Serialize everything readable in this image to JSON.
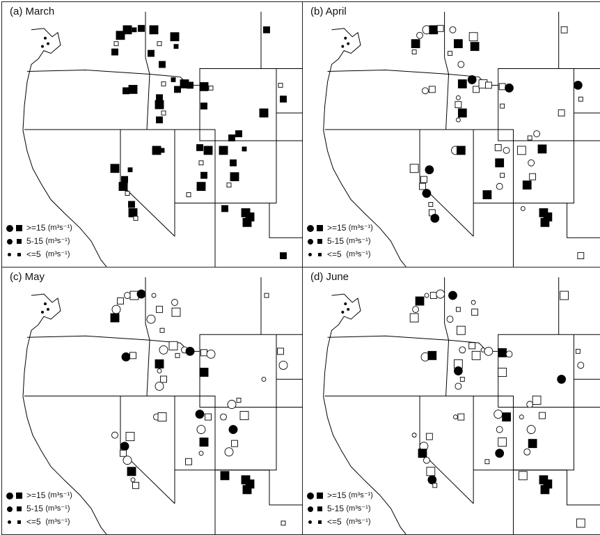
{
  "figure": {
    "panels": [
      {
        "label": "(a) March"
      },
      {
        "label": "(b) April"
      },
      {
        "label": "(c) May"
      },
      {
        "label": "(d) June"
      }
    ],
    "legend": {
      "large": ">=15",
      "medium": "5-15",
      "small": "<=5",
      "unit": "(m³s⁻¹)"
    },
    "colors": {
      "filled": "#000000",
      "open": "#ffffff",
      "boundary": "#000000"
    },
    "symbol_shapes": [
      "circle",
      "square"
    ],
    "symbol_fill_meaning": [
      "filled",
      "open"
    ]
  }
}
